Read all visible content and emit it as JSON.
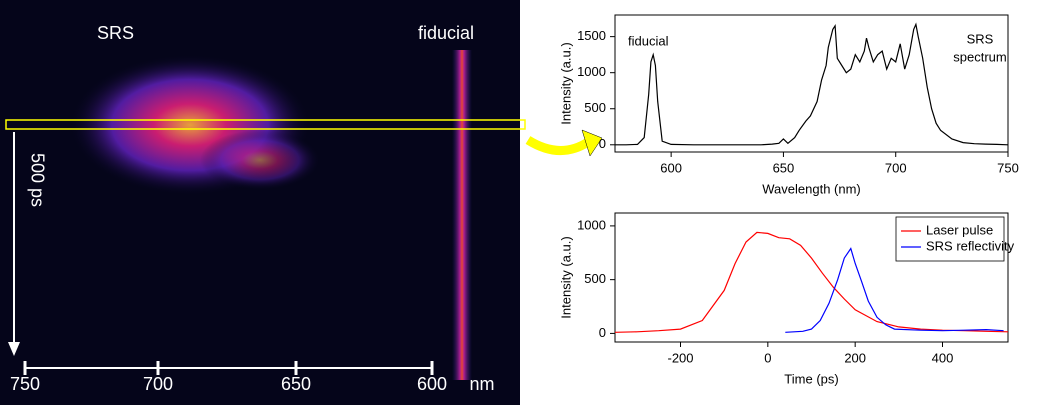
{
  "image": {
    "srs_label": "SRS",
    "fiducial_label": "fiducial",
    "time_label": "500 ps",
    "scale_labels": [
      "750",
      "700",
      "650",
      "600"
    ],
    "scale_unit": "nm"
  },
  "chart_data": [
    {
      "type": "line",
      "xlabel": "Wavelength (nm)",
      "ylabel": "Intensity (a.u.)",
      "annotations": [
        "fiducial",
        "SRS",
        "spectrum"
      ],
      "xlim": [
        575,
        750
      ],
      "ylim": [
        -100,
        1800
      ],
      "xticks": [
        600,
        650,
        700,
        750
      ],
      "yticks": [
        0,
        500,
        1000,
        1500
      ],
      "series": [
        {
          "color": "#000000",
          "x": [
            575,
            580,
            585,
            588,
            590,
            591,
            592,
            593,
            594,
            596,
            600,
            610,
            620,
            630,
            640,
            645,
            648,
            650,
            652,
            655,
            657,
            660,
            662,
            665,
            667,
            669,
            670,
            672,
            673,
            674,
            676,
            678,
            680,
            682,
            684,
            686,
            687,
            688,
            690,
            692,
            694,
            696,
            698,
            700,
            702,
            704,
            706,
            708,
            709,
            710,
            712,
            714,
            716,
            718,
            720,
            725,
            730,
            735,
            740,
            745,
            750
          ],
          "values": [
            0,
            0,
            5,
            100,
            700,
            1150,
            1250,
            1100,
            600,
            50,
            5,
            0,
            0,
            0,
            0,
            10,
            20,
            80,
            20,
            100,
            200,
            330,
            400,
            600,
            900,
            1100,
            1350,
            1600,
            1650,
            1200,
            1100,
            1000,
            1050,
            1250,
            1150,
            1300,
            1480,
            1350,
            1150,
            1250,
            1300,
            1050,
            1200,
            1150,
            1400,
            1050,
            1250,
            1600,
            1670,
            1500,
            1200,
            800,
            500,
            300,
            200,
            80,
            30,
            15,
            10,
            5,
            0
          ]
        }
      ]
    },
    {
      "type": "line",
      "xlabel": "Time (ps)",
      "ylabel": "Intensity (a.u.)",
      "legend": "upper right",
      "xlim": [
        -350,
        550
      ],
      "ylim": [
        -80,
        1120
      ],
      "xticks": [
        -200,
        0,
        200,
        400
      ],
      "yticks": [
        0,
        500,
        1000
      ],
      "series": [
        {
          "name": "Laser pulse",
          "color": "#ff0000",
          "x": [
            -350,
            -300,
            -250,
            -200,
            -150,
            -100,
            -75,
            -50,
            -25,
            0,
            25,
            50,
            75,
            100,
            125,
            150,
            175,
            200,
            250,
            300,
            350,
            400,
            450,
            500,
            550
          ],
          "values": [
            10,
            15,
            25,
            40,
            120,
            400,
            650,
            850,
            940,
            930,
            890,
            880,
            820,
            700,
            560,
            430,
            320,
            220,
            110,
            60,
            40,
            30,
            25,
            20,
            15
          ]
        },
        {
          "name": "SRS reflectivity",
          "color": "#0000ff",
          "x": [
            40,
            80,
            100,
            120,
            140,
            160,
            175,
            190,
            200,
            215,
            230,
            250,
            270,
            290,
            350,
            400,
            450,
            500,
            540
          ],
          "values": [
            10,
            20,
            40,
            120,
            280,
            500,
            700,
            790,
            650,
            480,
            300,
            150,
            80,
            40,
            30,
            25,
            30,
            35,
            25
          ]
        }
      ]
    }
  ]
}
